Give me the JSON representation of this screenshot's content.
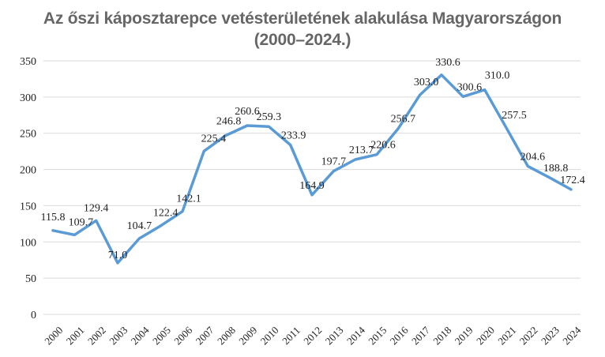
{
  "chart_data": {
    "type": "line",
    "title_line1": "Az őszi káposztarepce vetésterületének alakulása Magyarországon",
    "title_line2": "(2000–2024.)",
    "xlabel": "",
    "ylabel": "",
    "ylim": [
      0,
      350
    ],
    "yticks": [
      "0",
      "50",
      "100",
      "150",
      "200",
      "250",
      "300",
      "350"
    ],
    "grid": "horizontal",
    "legend": "none",
    "line_color": "#5b9bd5",
    "categories": [
      "2000",
      "2001",
      "2002",
      "2003",
      "2004",
      "2005",
      "2006",
      "2007",
      "2008",
      "2009",
      "2010",
      "2011",
      "2012",
      "2013",
      "2014",
      "2015",
      "2016",
      "2017",
      "2018",
      "2019",
      "2020",
      "2021",
      "2022",
      "2023",
      "2024"
    ],
    "values": [
      115.8,
      109.7,
      129.4,
      71.0,
      104.7,
      122.4,
      142.1,
      225.4,
      246.8,
      260.6,
      259.3,
      233.9,
      164.9,
      197.7,
      213.7,
      220.6,
      256.7,
      303.0,
      330.6,
      300.6,
      310.0,
      257.5,
      204.6,
      188.8,
      172.4
    ],
    "data_labels": [
      "115.8",
      "109.7",
      "129.4",
      "71.0",
      "104.7",
      "122.4",
      "142.1",
      "225.4",
      "246.8",
      "260.6",
      "259.3",
      "233.9",
      "164.9",
      "197.7",
      "213.7",
      "220.6",
      "256.7",
      "303.0",
      "330.6",
      "300.6",
      "310.0",
      "257.5",
      "204.6",
      "188.8",
      "172.4"
    ]
  }
}
